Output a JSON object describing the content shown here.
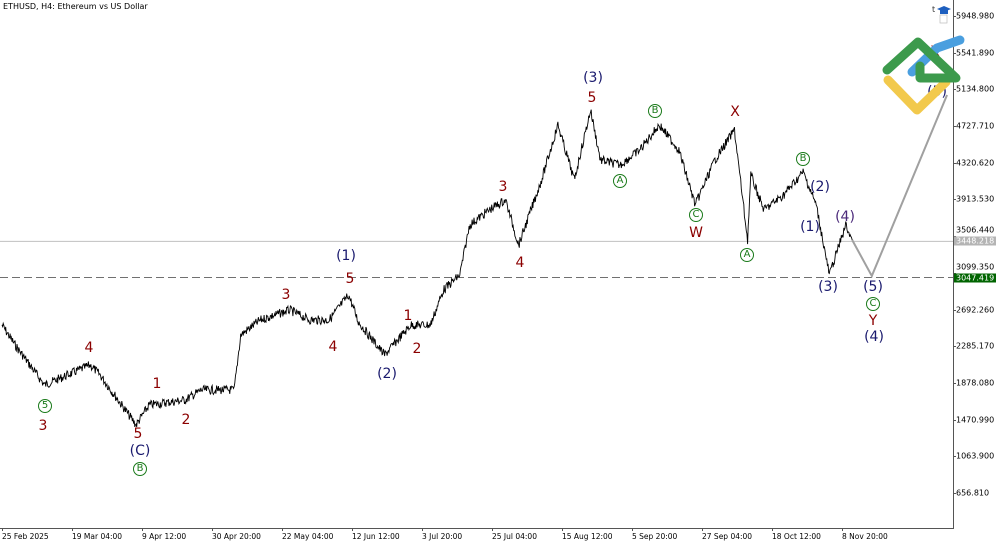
{
  "title": "ETHUSD, H4: Ethereum vs US Dollar",
  "corner_letter": "t",
  "icons": {
    "graduation": "graduation-cap-icon",
    "logo": "broker-logo"
  },
  "colors": {
    "price": "#000000",
    "projection": "#a0a0a0",
    "bid_line": "#c0c0c0",
    "target_line": "#707070",
    "target_tag": "#006400",
    "bid_tag": "#b4b4b4",
    "wave_major": "#8b0000",
    "wave_navy": "#1a1a6e",
    "wave_circle": "#1a7a1a"
  },
  "chart_data": {
    "type": "line",
    "symbol": "ETHUSD",
    "timeframe": "H4",
    "y_ticks": [
      "5948.980",
      "5541.890",
      "5134.800",
      "4727.710",
      "4320.620",
      "3913.530",
      "3506.440",
      "3099.350",
      "2692.260",
      "2285.170",
      "1878.080",
      "1470.990",
      "1063.900",
      "656.810"
    ],
    "ylim": [
      656.81,
      5948.98
    ],
    "x_ticks": [
      "25 Feb 2025",
      "19 Mar 04:00",
      "9 Apr 12:00",
      "30 Apr 20:00",
      "22 May 04:00",
      "12 Jun 12:00",
      "3 Jul 20:00",
      "25 Jul 04:00",
      "15 Aug 12:00",
      "5 Sep 20:00",
      "27 Sep 04:00",
      "18 Oct 12:00",
      "8 Nov 20:00"
    ],
    "current_price": "3448.218",
    "target_level": "3047.419",
    "price_path": [
      [
        "2025-02-25",
        2521
      ],
      [
        "2025-03-01",
        2299
      ],
      [
        "2025-03-10",
        1855
      ],
      [
        "2025-03-15",
        1933
      ],
      [
        "2025-03-24",
        2077
      ],
      [
        "2025-03-27",
        1966
      ],
      [
        "2025-04-07",
        1412
      ],
      [
        "2025-04-11",
        1633
      ],
      [
        "2025-04-22",
        1689
      ],
      [
        "2025-04-27",
        1800
      ],
      [
        "2025-05-07",
        1800
      ],
      [
        "2025-05-09",
        2410
      ],
      [
        "2025-05-15",
        2576
      ],
      [
        "2025-05-24",
        2687
      ],
      [
        "2025-05-30",
        2576
      ],
      [
        "2025-06-05",
        2576
      ],
      [
        "2025-06-11",
        2854
      ],
      [
        "2025-06-14",
        2554
      ],
      [
        "2025-06-22",
        2188
      ],
      [
        "2025-06-30",
        2521
      ],
      [
        "2025-07-06",
        2521
      ],
      [
        "2025-07-10",
        2909
      ],
      [
        "2025-07-15",
        3076
      ],
      [
        "2025-07-18",
        3630
      ],
      [
        "2025-07-24",
        3797
      ],
      [
        "2025-07-29",
        3908
      ],
      [
        "2025-08-02",
        3408
      ],
      [
        "2025-08-09",
        4130
      ],
      [
        "2025-08-14",
        4740
      ],
      [
        "2025-08-19",
        4130
      ],
      [
        "2025-08-24",
        4906
      ],
      [
        "2025-08-27",
        4351
      ],
      [
        "2025-09-02",
        4296
      ],
      [
        "2025-09-08",
        4462
      ],
      [
        "2025-09-14",
        4740
      ],
      [
        "2025-09-20",
        4462
      ],
      [
        "2025-09-25",
        3852
      ],
      [
        "2025-10-01",
        4351
      ],
      [
        "2025-10-07",
        4684
      ],
      [
        "2025-10-11",
        3464
      ],
      [
        "2025-10-12",
        4185
      ],
      [
        "2025-10-16",
        3797
      ],
      [
        "2025-10-22",
        3963
      ],
      [
        "2025-10-28",
        4218
      ],
      [
        "2025-11-01",
        3852
      ],
      [
        "2025-11-05",
        3076
      ],
      [
        "2025-11-10",
        3630
      ],
      [
        "2025-11-12",
        3464
      ]
    ],
    "projection": [
      [
        "2025-11-12",
        3464
      ],
      [
        "2025-11-18",
        3065
      ],
      [
        "2025-12-11",
        5073
      ]
    ],
    "wave_labels": [
      {
        "text": "5",
        "style": "gc"
      },
      {
        "text": "3",
        "style": "maroon"
      },
      {
        "text": "4",
        "style": "maroon"
      },
      {
        "text": "1",
        "style": "maroon"
      },
      {
        "text": "2",
        "style": "maroon"
      },
      {
        "text": "5",
        "style": "maroon"
      },
      {
        "text": "(C)",
        "style": "navy"
      },
      {
        "text": "B",
        "style": "gc"
      },
      {
        "text": "3",
        "style": "maroon"
      },
      {
        "text": "4",
        "style": "maroon"
      },
      {
        "text": "(1)",
        "style": "navy"
      },
      {
        "text": "5",
        "style": "maroon"
      },
      {
        "text": "1",
        "style": "maroon"
      },
      {
        "text": "2",
        "style": "maroon"
      },
      {
        "text": "(2)",
        "style": "navy"
      },
      {
        "text": "3",
        "style": "maroon"
      },
      {
        "text": "4",
        "style": "maroon"
      },
      {
        "text": "(3)",
        "style": "navy"
      },
      {
        "text": "5",
        "style": "maroon"
      },
      {
        "text": "A",
        "style": "gc"
      },
      {
        "text": "B",
        "style": "gc"
      },
      {
        "text": "C",
        "style": "gc"
      },
      {
        "text": "W",
        "style": "maroon"
      },
      {
        "text": "X",
        "style": "maroon"
      },
      {
        "text": "A",
        "style": "gc"
      },
      {
        "text": "B",
        "style": "gc"
      },
      {
        "text": "(2)",
        "style": "navy"
      },
      {
        "text": "(1)",
        "style": "navy"
      },
      {
        "text": "(4)",
        "style": "purple"
      },
      {
        "text": "(3)",
        "style": "navy"
      },
      {
        "text": "(5)",
        "style": "navy"
      },
      {
        "text": "C",
        "style": "gc"
      },
      {
        "text": "Y",
        "style": "maroon"
      },
      {
        "text": "(4)",
        "style": "navy"
      },
      {
        "text": "X",
        "style": "maroon"
      },
      {
        "text": "(5)",
        "style": "navy"
      }
    ]
  }
}
